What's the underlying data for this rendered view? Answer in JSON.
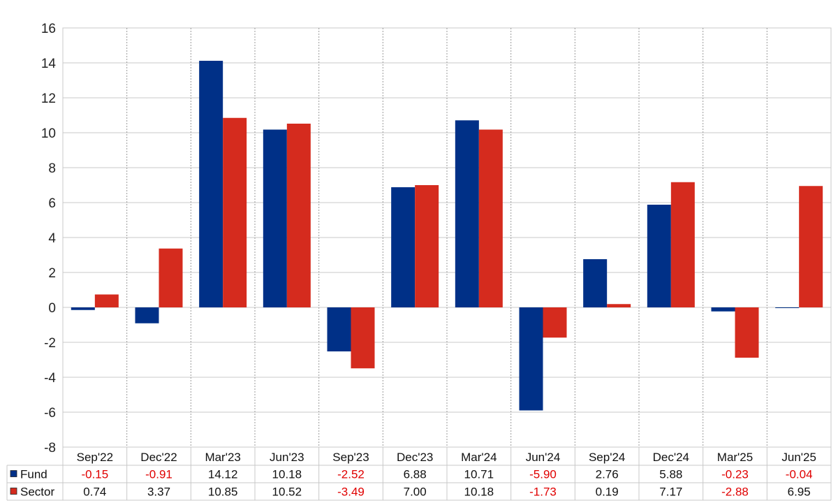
{
  "chart_data": {
    "type": "bar",
    "title": "",
    "xlabel": "",
    "ylabel": "",
    "ylim": [
      -8,
      16
    ],
    "yticks": [
      -8,
      -6,
      -4,
      -2,
      0,
      2,
      4,
      6,
      8,
      10,
      12,
      14,
      16
    ],
    "grid": true,
    "categories": [
      "Sep'22",
      "Dec'22",
      "Mar'23",
      "Jun'23",
      "Sep'23",
      "Dec'23",
      "Mar'24",
      "Jun'24",
      "Sep'24",
      "Dec'24",
      "Mar'25",
      "Jun'25"
    ],
    "series": [
      {
        "name": "Fund",
        "color": "#003087",
        "values": [
          -0.15,
          -0.91,
          14.12,
          10.18,
          -2.52,
          6.88,
          10.71,
          -5.9,
          2.76,
          5.88,
          -0.23,
          -0.04
        ],
        "labels": [
          "-0.15",
          "-0.91",
          "14.12",
          "10.18",
          "-2.52",
          "6.88",
          "10.71",
          "-5.90",
          "2.76",
          "5.88",
          "-0.23",
          "-0.04"
        ]
      },
      {
        "name": "Sector",
        "color": "#d52b1e",
        "values": [
          0.74,
          3.37,
          10.85,
          10.52,
          -3.49,
          7.0,
          10.18,
          -1.73,
          0.19,
          7.17,
          -2.88,
          6.95
        ],
        "labels": [
          "0.74",
          "3.37",
          "10.85",
          "10.52",
          "-3.49",
          "7.00",
          "10.18",
          "-1.73",
          "0.19",
          "7.17",
          "-2.88",
          "6.95"
        ]
      }
    ],
    "negative_value_color": "#e00000",
    "data_table": true
  }
}
